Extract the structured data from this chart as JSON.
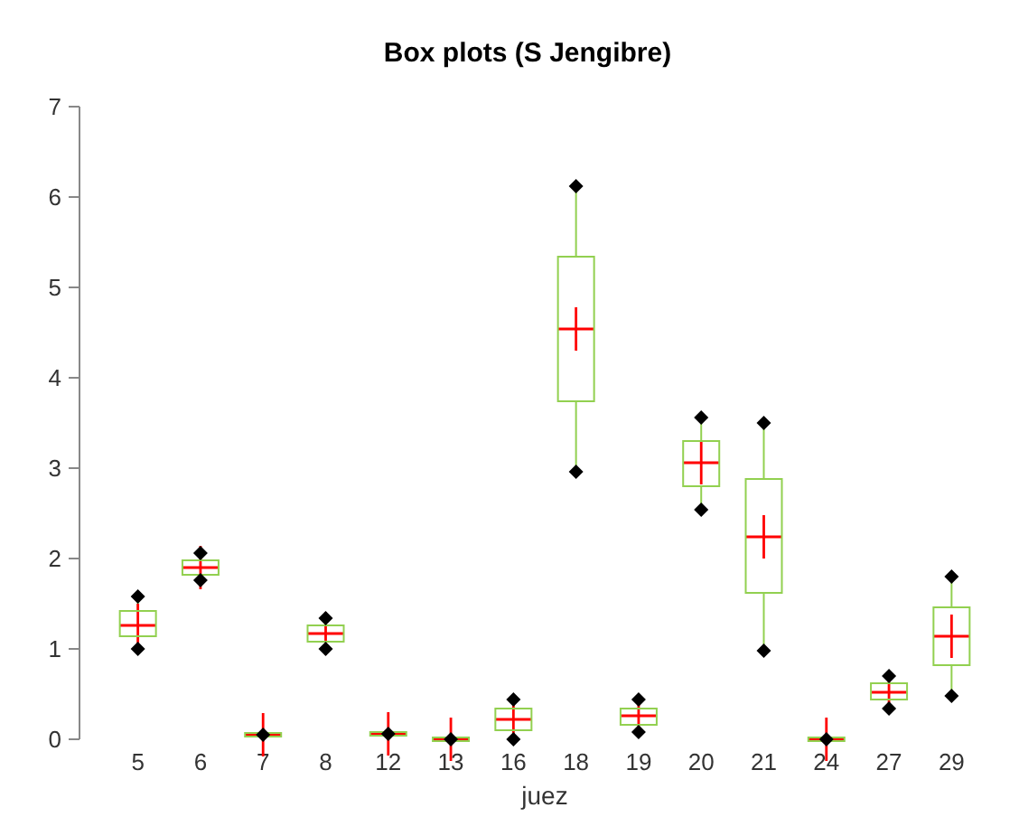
{
  "chart_data": {
    "type": "box",
    "title": "Box plots (S Jengibre)",
    "xlabel": "juez",
    "categories": [
      "5",
      "6",
      "7",
      "8",
      "12",
      "13",
      "16",
      "18",
      "19",
      "20",
      "21",
      "24",
      "27",
      "29"
    ],
    "ylim": [
      0,
      7
    ],
    "yticks": [
      0,
      1,
      2,
      3,
      4,
      5,
      6,
      7
    ],
    "grid": false,
    "color": "#92d050",
    "boxes": [
      {
        "low": 1.0,
        "q1": 1.14,
        "median": 1.26,
        "q3": 1.42,
        "high": 1.58,
        "mean": 1.26
      },
      {
        "low": 1.76,
        "q1": 1.82,
        "median": 1.9,
        "q3": 1.98,
        "high": 2.06,
        "mean": 1.9
      },
      {
        "low": 0.05,
        "q1": 0.05,
        "median": 0.05,
        "q3": 0.05,
        "high": 0.05,
        "mean": 0.05
      },
      {
        "low": 1.0,
        "q1": 1.08,
        "median": 1.17,
        "q3": 1.26,
        "high": 1.34,
        "mean": 1.17
      },
      {
        "low": 0.06,
        "q1": 0.06,
        "median": 0.06,
        "q3": 0.06,
        "high": 0.06,
        "mean": 0.06
      },
      {
        "low": 0,
        "q1": 0,
        "median": 0,
        "q3": 0,
        "high": 0,
        "mean": 0
      },
      {
        "low": 0,
        "q1": 0.1,
        "median": 0.22,
        "q3": 0.34,
        "high": 0.44,
        "mean": 0.22
      },
      {
        "low": 2.96,
        "q1": 3.74,
        "median": 4.54,
        "q3": 5.34,
        "high": 6.12,
        "mean": 4.54
      },
      {
        "low": 0.08,
        "q1": 0.16,
        "median": 0.26,
        "q3": 0.34,
        "high": 0.44,
        "mean": 0.26
      },
      {
        "low": 2.54,
        "q1": 2.8,
        "median": 3.06,
        "q3": 3.3,
        "high": 3.56,
        "mean": 3.06
      },
      {
        "low": 0.98,
        "q1": 1.62,
        "median": 2.24,
        "q3": 2.88,
        "high": 3.5,
        "mean": 2.24
      },
      {
        "low": 0,
        "q1": 0,
        "median": 0,
        "q3": 0,
        "high": 0,
        "mean": 0
      },
      {
        "low": 0.34,
        "q1": 0.44,
        "median": 0.52,
        "q3": 0.62,
        "high": 0.7,
        "mean": 0.52
      },
      {
        "low": 0.48,
        "q1": 0.82,
        "median": 1.14,
        "q3": 1.46,
        "high": 1.8,
        "mean": 1.14
      }
    ]
  }
}
